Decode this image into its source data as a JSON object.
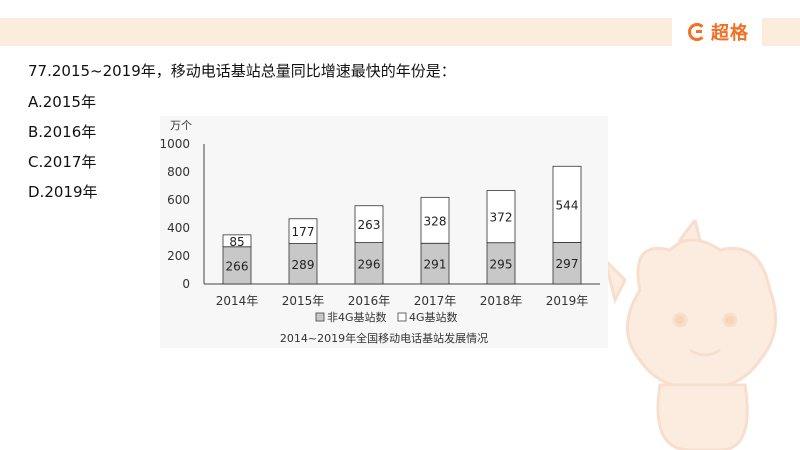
{
  "brand": {
    "logo_text": "超格",
    "logo_icon": "brand-g-icon",
    "accent_color": "#f36f22",
    "bar_color": "#fdebdc"
  },
  "question": {
    "text": "77.2015~2019年，移动电话基站总量同比增速最快的年份是：",
    "options": [
      "A.2015年",
      "B.2016年",
      "C.2017年",
      "D.2019年"
    ]
  },
  "chart_data": {
    "type": "bar",
    "stacked": true,
    "title": "2014~2019年全国移动电话基站发展情况",
    "ylabel": "万个",
    "xlabel": "",
    "ylim": [
      0,
      1000
    ],
    "yticks": [
      "0",
      "200",
      "400",
      "600",
      "800",
      "1000"
    ],
    "categories": [
      "2014年",
      "2015年",
      "2016年",
      "2017年",
      "2018年",
      "2019年"
    ],
    "series": [
      {
        "name": "非4G基站数",
        "values": [
          266,
          289,
          296,
          291,
          295,
          297
        ],
        "color": "#c8c8c8"
      },
      {
        "name": "4G基站数",
        "values": [
          85,
          177,
          263,
          328,
          372,
          544
        ],
        "color": "#ffffff"
      }
    ],
    "legend_position": "bottom",
    "grid": false
  }
}
